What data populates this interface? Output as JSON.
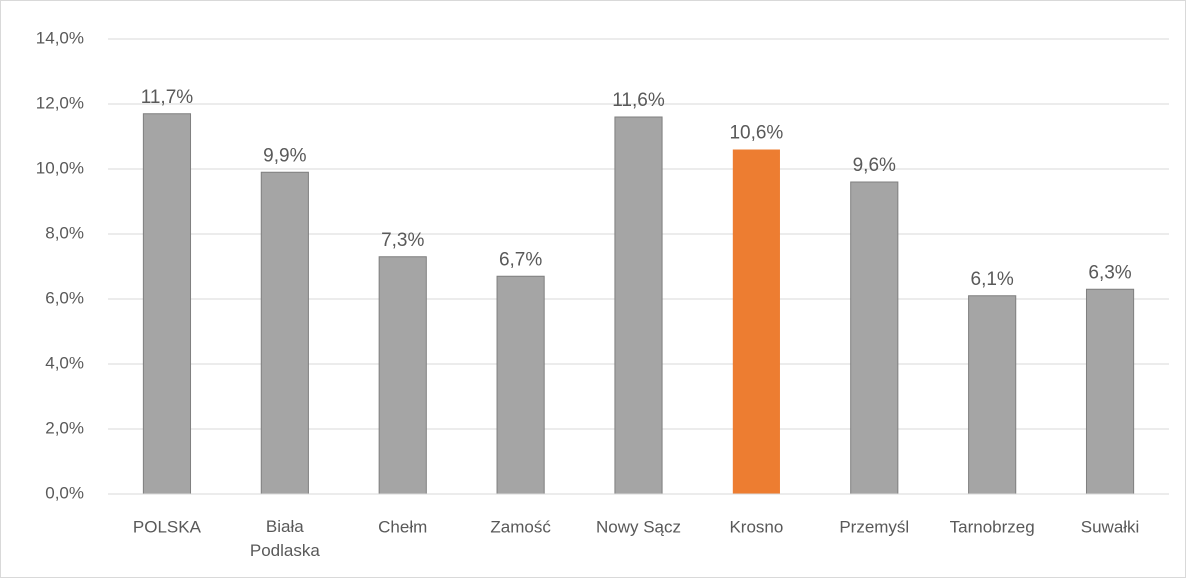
{
  "chart_data": {
    "type": "bar",
    "categories": [
      "POLSKA",
      "Biała Podlaska",
      "Chełm",
      "Zamość",
      "Nowy Sącz",
      "Krosno",
      "Przemyśl",
      "Tarnobrzeg",
      "Suwałki"
    ],
    "values": [
      11.7,
      9.9,
      7.3,
      6.7,
      11.6,
      10.6,
      9.6,
      6.1,
      6.3
    ],
    "value_labels": [
      "11,7%",
      "9,9%",
      "7,3%",
      "6,7%",
      "11,6%",
      "10,6%",
      "9,6%",
      "6,1%",
      "6,3%"
    ],
    "colors": [
      "#a5a5a5",
      "#a5a5a5",
      "#a5a5a5",
      "#a5a5a5",
      "#a5a5a5",
      "#ed7d31",
      "#a5a5a5",
      "#a5a5a5",
      "#a5a5a5"
    ],
    "ylim": [
      0,
      14
    ],
    "yticks": [
      {
        "value": 0,
        "label": "0,0%"
      },
      {
        "value": 2,
        "label": "2,0%"
      },
      {
        "value": 4,
        "label": "4,0%"
      },
      {
        "value": 6,
        "label": "6,0%"
      },
      {
        "value": 8,
        "label": "8,0%"
      },
      {
        "value": 10,
        "label": "10,0%"
      },
      {
        "value": 12,
        "label": "12,0%"
      },
      {
        "value": 14,
        "label": "14,0%"
      }
    ],
    "grid": true
  }
}
